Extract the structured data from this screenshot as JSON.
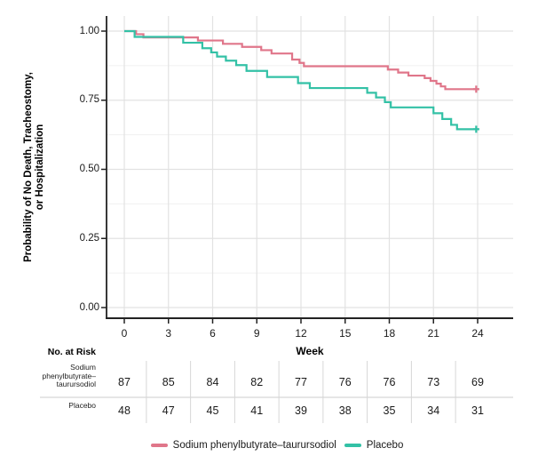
{
  "chart_data": {
    "type": "line",
    "subtype": "kaplan-meier-step",
    "title": "",
    "xlabel": "Week",
    "ylabel_line1": "Probability of No Death, Tracheostomy,",
    "ylabel_line2": "or Hospitalization",
    "xlim": [
      0,
      24
    ],
    "ylim": [
      0.0,
      1.0
    ],
    "x_ticks": [
      0,
      3,
      6,
      9,
      12,
      15,
      18,
      21,
      24
    ],
    "y_ticks": [
      {
        "label": "1.00",
        "value": 1.0
      },
      {
        "label": "0.75",
        "value": 0.75
      },
      {
        "label": "0.50",
        "value": 0.5
      },
      {
        "label": "0.25",
        "value": 0.25
      },
      {
        "label": "0.00",
        "value": 0.0
      }
    ],
    "grid": {
      "major": true,
      "minor_horizontal": true,
      "minor_y_values": [
        0.875,
        0.625,
        0.375,
        0.125
      ]
    },
    "legend_position": "bottom",
    "series": [
      {
        "name": "Sodium phenylbutyrate–taurursodiol",
        "color": "#e0768a",
        "steps": [
          [
            0.0,
            1.0
          ],
          [
            0.8,
            0.989
          ],
          [
            1.3,
            0.977
          ],
          [
            5.0,
            0.966
          ],
          [
            6.7,
            0.954
          ],
          [
            8.0,
            0.943
          ],
          [
            9.3,
            0.931
          ],
          [
            10.0,
            0.919
          ],
          [
            11.4,
            0.897
          ],
          [
            11.9,
            0.885
          ],
          [
            12.2,
            0.873
          ],
          [
            17.9,
            0.861
          ],
          [
            18.6,
            0.85
          ],
          [
            19.3,
            0.839
          ],
          [
            20.4,
            0.83
          ],
          [
            20.8,
            0.82
          ],
          [
            21.2,
            0.81
          ],
          [
            21.5,
            0.8
          ],
          [
            21.8,
            0.79
          ]
        ],
        "end_week": 24.1,
        "censor_marks": [
          [
            23.9,
            0.79
          ]
        ]
      },
      {
        "name": "Placebo",
        "color": "#33c1a6",
        "steps": [
          [
            0.0,
            1.0
          ],
          [
            0.7,
            0.979
          ],
          [
            4.0,
            0.958
          ],
          [
            5.3,
            0.938
          ],
          [
            5.9,
            0.923
          ],
          [
            6.3,
            0.908
          ],
          [
            6.9,
            0.893
          ],
          [
            7.6,
            0.877
          ],
          [
            8.3,
            0.856
          ],
          [
            9.7,
            0.834
          ],
          [
            11.8,
            0.812
          ],
          [
            12.6,
            0.794
          ],
          [
            16.5,
            0.777
          ],
          [
            17.1,
            0.76
          ],
          [
            17.7,
            0.743
          ],
          [
            18.1,
            0.724
          ],
          [
            21.0,
            0.703
          ],
          [
            21.6,
            0.682
          ],
          [
            22.2,
            0.661
          ],
          [
            22.6,
            0.645
          ]
        ],
        "end_week": 24.1,
        "censor_marks": [
          [
            23.9,
            0.645
          ]
        ]
      }
    ]
  },
  "risk_table": {
    "header": "No. at Risk",
    "week_columns": [
      0,
      3,
      6,
      9,
      12,
      15,
      18,
      21,
      24
    ],
    "rows": [
      {
        "label_lines": [
          "Sodium",
          "phenylbutyrate–",
          "taurursodiol"
        ],
        "values": [
          "87",
          "85",
          "84",
          "82",
          "77",
          "76",
          "76",
          "73",
          "69"
        ]
      },
      {
        "label_lines": [
          "Placebo"
        ],
        "values": [
          "48",
          "47",
          "45",
          "41",
          "39",
          "38",
          "35",
          "34",
          "31"
        ]
      }
    ]
  },
  "legend": [
    {
      "label": "Sodium phenylbutyrate–taurursodiol",
      "color": "#e0768a"
    },
    {
      "label": "Placebo",
      "color": "#33c1a6"
    }
  ],
  "colors": {
    "background": "#ffffff",
    "axis": "#222222",
    "grid_major": "#e2e2e2",
    "grid_minor": "#f0f0f0",
    "table_line": "#d6d6d6",
    "text": "#1a1a1a"
  }
}
